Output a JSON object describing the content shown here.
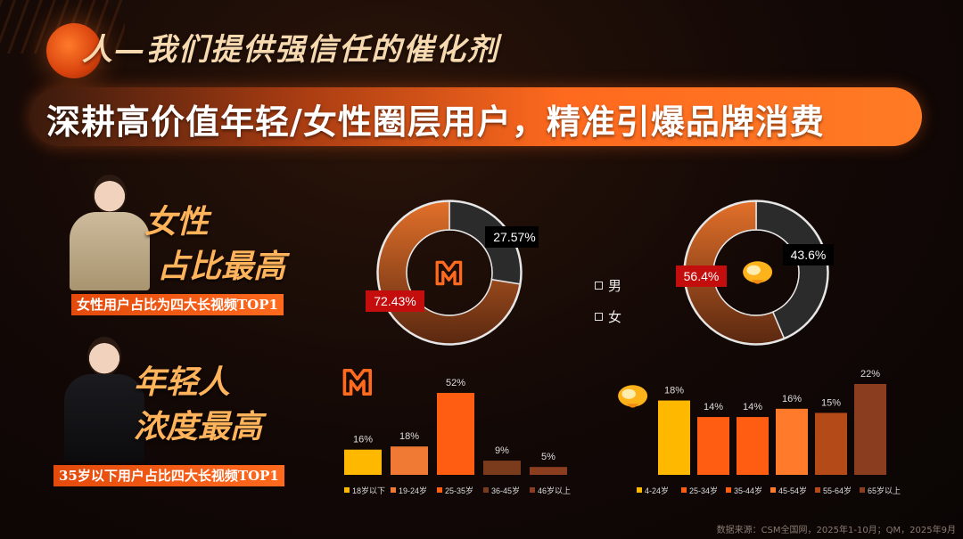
{
  "header": {
    "kicker": "人—我们提供强信任的催化剂",
    "banner_title": "深耕高价值年轻/女性圈层用户，精准引爆品牌消费"
  },
  "sections": {
    "female": {
      "title_line1": "女性",
      "title_line2": "占比最高",
      "caption": "女性用户占比为四大长视频TOP1"
    },
    "young": {
      "title_line1": "年轻人",
      "title_line2": "浓度最高",
      "caption": "35岁以下用户占比四大长视频TOP1"
    }
  },
  "gender_legend": {
    "male": "男",
    "female": "女"
  },
  "source": "数据来源：CSM全国网，2025年1-10月；QM，2025年9月",
  "colors": {
    "male": "#2b2b2b",
    "female": "#d2621f",
    "highlight_label": "#c40d0d",
    "age_colors_a": [
      "#ffb800",
      "#f07a34",
      "#ff5e12",
      "#7a3a1c",
      "#8a3d1f"
    ],
    "age_colors_b": [
      "#ffb800",
      "#ff5e12",
      "#ff5e12",
      "#ff7a2a",
      "#b34a18",
      "#8a3d1f"
    ]
  },
  "chart_data": [
    {
      "type": "pie",
      "categories": [
        "男",
        "女"
      ],
      "values": [
        27.57,
        72.43
      ],
      "labels": [
        "27.57%",
        "72.43%"
      ],
      "logo": "mango-tv-icon"
    },
    {
      "type": "pie",
      "categories": [
        "男",
        "女"
      ],
      "values": [
        43.6,
        56.4
      ],
      "labels": [
        "43.6%",
        "56.4%"
      ],
      "logo": "tencent-video-icon"
    },
    {
      "type": "bar",
      "categories": [
        "18岁以下",
        "19-24岁",
        "25-35岁",
        "36-45岁",
        "46岁以上"
      ],
      "values": [
        16,
        18,
        52,
        9,
        5
      ],
      "labels": [
        "16%",
        "18%",
        "52%",
        "9%",
        "5%"
      ],
      "logo": "mango-tv-icon",
      "ylim": [
        0,
        52
      ]
    },
    {
      "type": "bar",
      "categories": [
        "4-24岁",
        "25-34岁",
        "35-44岁",
        "45-54岁",
        "55-64岁",
        "65岁以上"
      ],
      "values": [
        18,
        14,
        14,
        16,
        15,
        22
      ],
      "labels": [
        "18%",
        "14%",
        "14%",
        "16%",
        "15%",
        "22%"
      ],
      "logo": "tencent-video-icon",
      "ylim": [
        0,
        22
      ]
    }
  ]
}
